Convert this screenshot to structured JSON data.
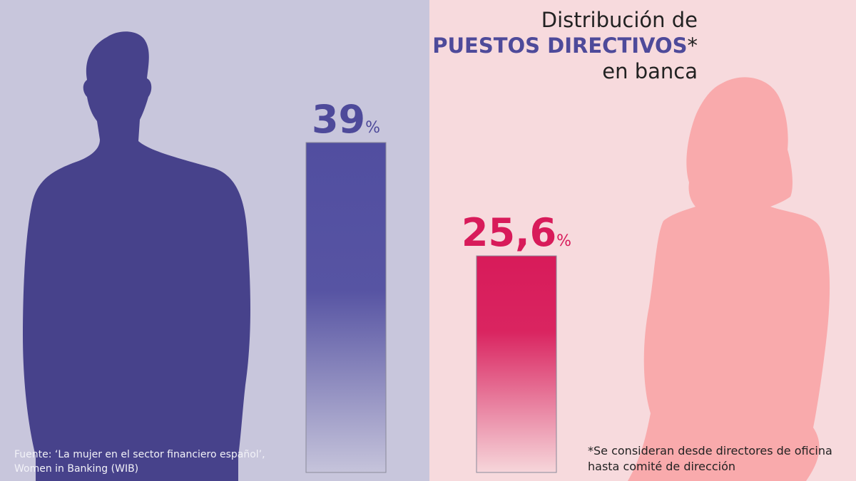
{
  "title": {
    "line1": "Distribución de",
    "highlight": "PUESTOS DIRECTIVOS",
    "asterisk": "*",
    "line3": "en banca"
  },
  "source": {
    "line1": "Fuente: ‘La mujer en el sector financiero español’,",
    "line2": "Women in Banking (WIB)"
  },
  "footnote": {
    "line1": "*Se consideran desde directores de oficina",
    "line2": "hasta comité de dirección"
  },
  "colors": {
    "men_panel": "#c8c6dc",
    "women_panel": "#f7dadd",
    "men_bar": "#514ea0",
    "women_bar": "#d81b5a",
    "men_silhouette": "#47428b",
    "women_silhouette": "#f9aaac"
  },
  "icons": [
    "man-silhouette-icon",
    "woman-silhouette-icon"
  ],
  "chart_data": {
    "type": "bar",
    "categories": [
      "",
      ""
    ],
    "values": [
      39,
      25.6
    ],
    "value_labels": [
      "39",
      "25,6"
    ],
    "unit": "%",
    "ylim": [
      0,
      39
    ],
    "title": "Distribución de PUESTOS DIRECTIVOS* en banca",
    "xlabel": "",
    "ylabel": "",
    "grid": false
  }
}
